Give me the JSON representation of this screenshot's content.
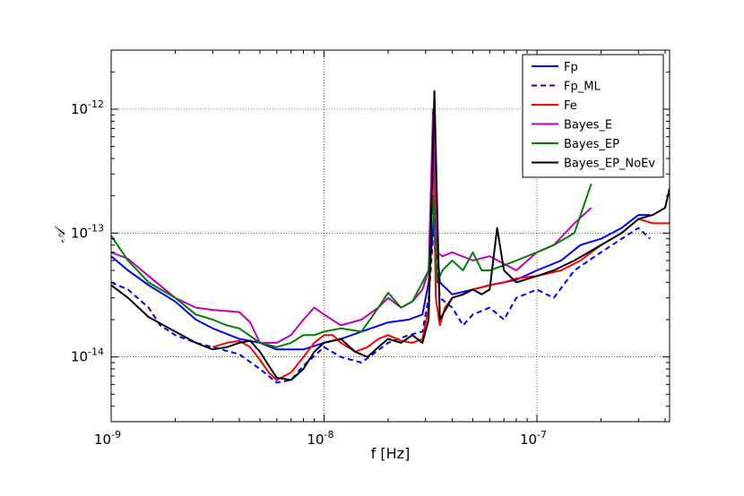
{
  "chart_data": {
    "type": "line",
    "xlabel": "f [Hz]",
    "ylabel": "𝒜",
    "xscale": "log",
    "yscale": "log",
    "xlim": [
      1e-09,
      4.2e-07
    ],
    "ylim": [
      3e-15,
      3e-12
    ],
    "grid": true,
    "legend_position": "top-right",
    "x_ticks": [
      {
        "value": 1e-09,
        "base": "10",
        "exp": "-9"
      },
      {
        "value": 1e-08,
        "base": "10",
        "exp": "-8"
      },
      {
        "value": 1e-07,
        "base": "10",
        "exp": "-7"
      }
    ],
    "y_ticks": [
      {
        "value": 1e-14,
        "base": "10",
        "exp": "-14"
      },
      {
        "value": 1e-13,
        "base": "10",
        "exp": "-13"
      },
      {
        "value": 1e-12,
        "base": "10",
        "exp": "-12"
      }
    ],
    "series": [
      {
        "name": "Fp",
        "color": "#0000ff",
        "dash": "solid",
        "x": [
          1e-09,
          1.2e-09,
          1.5e-09,
          2e-09,
          2.5e-09,
          3e-09,
          4e-09,
          5e-09,
          6e-09,
          8e-09,
          1e-08,
          1.2e-08,
          1.5e-08,
          2e-08,
          2.5e-08,
          2.9e-08,
          3.1e-08,
          3.3e-08,
          3.5e-08,
          4e-08,
          5e-08,
          6e-08,
          7e-08,
          8e-08,
          1e-07,
          1.3e-07,
          1.6e-07,
          2e-07,
          2.5e-07,
          3e-07,
          3.4e-07
        ],
        "y": [
          6.5e-14,
          5e-14,
          3.8e-14,
          2.8e-14,
          2e-14,
          1.7e-14,
          1.4e-14,
          1.3e-14,
          1.15e-14,
          1.15e-14,
          1.3e-14,
          1.4e-14,
          1.6e-14,
          1.9e-14,
          2e-14,
          2.2e-14,
          4e-14,
          1.5e-13,
          4e-14,
          3.2e-14,
          3.5e-14,
          3.8e-14,
          4e-14,
          4.2e-14,
          5e-14,
          6e-14,
          8e-14,
          9e-14,
          1.1e-13,
          1.4e-13,
          1.4e-13
        ]
      },
      {
        "name": "Fp_ML",
        "color": "#0000ff",
        "dash": "dashed",
        "x": [
          1e-09,
          1.2e-09,
          1.5e-09,
          1.7e-09,
          2e-09,
          2.5e-09,
          3e-09,
          4e-09,
          5e-09,
          6e-09,
          7e-09,
          8e-09,
          1e-08,
          1.2e-08,
          1.5e-08,
          2e-08,
          2.5e-08,
          2.9e-08,
          3.1e-08,
          3.3e-08,
          3.5e-08,
          4e-08,
          4.5e-08,
          5e-08,
          6e-08,
          7e-08,
          8e-08,
          1e-07,
          1.2e-07,
          1.5e-07,
          2e-07,
          2.5e-07,
          3e-07,
          3.4e-07
        ],
        "y": [
          4e-14,
          3.5e-14,
          2.5e-14,
          1.8e-14,
          1.5e-14,
          1.3e-14,
          1.2e-14,
          1.05e-14,
          8e-15,
          6.2e-15,
          6.5e-15,
          8.5e-15,
          1.2e-14,
          1e-14,
          9e-15,
          1.3e-14,
          1.5e-14,
          1.6e-14,
          3e-14,
          1.3e-13,
          3e-14,
          2.5e-14,
          1.8e-14,
          2.2e-14,
          2.5e-14,
          2e-14,
          3e-14,
          3.5e-14,
          3e-14,
          5e-14,
          7e-14,
          9e-14,
          1.1e-13,
          9e-14
        ]
      },
      {
        "name": "Fe",
        "color": "#ff0000",
        "dash": "solid",
        "x": [
          3e-09,
          3.5e-09,
          4e-09,
          4.5e-09,
          5e-09,
          5.5e-09,
          6e-09,
          7e-09,
          8e-09,
          9e-09,
          1e-08,
          1.1e-08,
          1.2e-08,
          1.4e-08,
          1.6e-08,
          1.8e-08,
          2e-08,
          2.3e-08,
          2.6e-08,
          2.9e-08,
          3.1e-08,
          3.25e-08,
          3.35e-08,
          3.5e-08,
          3.7e-08,
          4e-08,
          4.5e-08,
          5e-08,
          6e-08,
          7e-08,
          8e-08,
          1e-07,
          1.3e-07,
          1.6e-07,
          2e-07,
          2.5e-07,
          3e-07,
          3.5e-07,
          4.2e-07
        ],
        "y": [
          1.2e-14,
          1.3e-14,
          1.35e-14,
          1.2e-14,
          9.5e-15,
          7.5e-15,
          6.5e-15,
          7.5e-15,
          1e-14,
          1.3e-14,
          1.5e-14,
          1.5e-14,
          1.3e-14,
          1.1e-14,
          1.2e-14,
          1.4e-14,
          1.5e-14,
          1.35e-14,
          1.3e-14,
          1.4e-14,
          2.5e-14,
          6e-13,
          3e-14,
          1.8e-14,
          2.5e-14,
          3e-14,
          3.2e-14,
          3.5e-14,
          3.8e-14,
          4e-14,
          4.3e-14,
          4.5e-14,
          5e-14,
          6e-14,
          8e-14,
          1e-13,
          1.3e-13,
          1.2e-13,
          1.2e-13
        ]
      },
      {
        "name": "Bayes_E",
        "color": "#bf00bf",
        "dash": "solid",
        "x": [
          1e-09,
          1.2e-09,
          1.5e-09,
          2e-09,
          2.5e-09,
          3e-09,
          4e-09,
          4.5e-09,
          5e-09,
          6e-09,
          7e-09,
          8e-09,
          9e-09,
          1e-08,
          1.2e-08,
          1.5e-08,
          1.8e-08,
          2e-08,
          2.3e-08,
          2.6e-08,
          2.9e-08,
          3.1e-08,
          3.25e-08,
          3.4e-08,
          3.6e-08,
          4e-08,
          5e-08,
          6e-08,
          8e-08,
          1e-07,
          1.2e-07,
          1.5e-07,
          1.8e-07
        ],
        "y": [
          7e-14,
          6.2e-14,
          4.5e-14,
          3e-14,
          2.5e-14,
          2.4e-14,
          2.3e-14,
          1.9e-14,
          1.3e-14,
          1.3e-14,
          1.5e-14,
          2e-14,
          2.5e-14,
          2.2e-14,
          1.8e-14,
          2e-14,
          2.5e-14,
          3e-14,
          2.5e-14,
          2.8e-14,
          3.5e-14,
          5e-14,
          1e-12,
          7e-14,
          6.5e-14,
          7e-14,
          6e-14,
          6.5e-14,
          5e-14,
          7e-14,
          8e-14,
          1.2e-13,
          1.6e-13
        ]
      },
      {
        "name": "Bayes_EP",
        "color": "#008000",
        "dash": "solid",
        "x": [
          1e-09,
          1.2e-09,
          1.5e-09,
          2e-09,
          2.5e-09,
          3e-09,
          3.5e-09,
          4e-09,
          5e-09,
          6e-09,
          7e-09,
          8e-09,
          9e-09,
          1e-08,
          1.2e-08,
          1.5e-08,
          1.8e-08,
          2e-08,
          2.3e-08,
          2.6e-08,
          2.9e-08,
          3.1e-08,
          3.25e-08,
          3.4e-08,
          3.6e-08,
          4e-08,
          4.5e-08,
          5e-08,
          5.5e-08,
          6e-08,
          7e-08,
          8e-08,
          1e-07,
          1.2e-07,
          1.5e-07,
          1.8e-07
        ],
        "y": [
          9.5e-14,
          6e-14,
          4e-14,
          3e-14,
          2.2e-14,
          2e-14,
          1.8e-14,
          1.7e-14,
          1.3e-14,
          1.2e-14,
          1.3e-14,
          1.5e-14,
          1.5e-14,
          1.6e-14,
          1.7e-14,
          1.6e-14,
          2.5e-14,
          3.3e-14,
          2.5e-14,
          2.8e-14,
          4e-14,
          5e-14,
          2e-13,
          4e-14,
          5e-14,
          6e-14,
          5e-14,
          7e-14,
          5e-14,
          5e-14,
          5.5e-14,
          6e-14,
          7e-14,
          8e-14,
          1e-13,
          2.5e-13
        ]
      },
      {
        "name": "Bayes_EP_NoEv",
        "color": "#000000",
        "dash": "solid",
        "x": [
          1e-09,
          1.2e-09,
          1.5e-09,
          2e-09,
          2.5e-09,
          3e-09,
          3.5e-09,
          4e-09,
          4.5e-09,
          5e-09,
          5.5e-09,
          6e-09,
          7e-09,
          8e-09,
          9e-09,
          1e-08,
          1.2e-08,
          1.4e-08,
          1.6e-08,
          1.8e-08,
          2e-08,
          2.3e-08,
          2.6e-08,
          2.9e-08,
          3.1e-08,
          3.3e-08,
          3.5e-08,
          4e-08,
          4.5e-08,
          5e-08,
          5.5e-08,
          6e-08,
          6.5e-08,
          7e-08,
          8e-08,
          1e-07,
          1.2e-07,
          1.5e-07,
          2e-07,
          2.5e-07,
          3e-07,
          3.5e-07,
          4e-07,
          4.2e-07
        ],
        "y": [
          3.8e-14,
          3e-14,
          2.1e-14,
          1.6e-14,
          1.3e-14,
          1.15e-14,
          1.2e-14,
          1.3e-14,
          1.35e-14,
          1.1e-14,
          8.5e-15,
          6.8e-15,
          6.5e-15,
          8e-15,
          1.1e-14,
          1.3e-14,
          1.4e-14,
          1.1e-14,
          1e-14,
          1.2e-14,
          1.4e-14,
          1.3e-14,
          1.5e-14,
          1.3e-14,
          2e-14,
          1.4e-12,
          2e-14,
          3e-14,
          3.2e-14,
          3.5e-14,
          3.2e-14,
          3.5e-14,
          1.1e-13,
          5e-14,
          4e-14,
          4.5e-14,
          5e-14,
          6e-14,
          8e-14,
          1e-13,
          1.3e-13,
          1.4e-13,
          1.6e-13,
          2.3e-13
        ]
      }
    ]
  }
}
